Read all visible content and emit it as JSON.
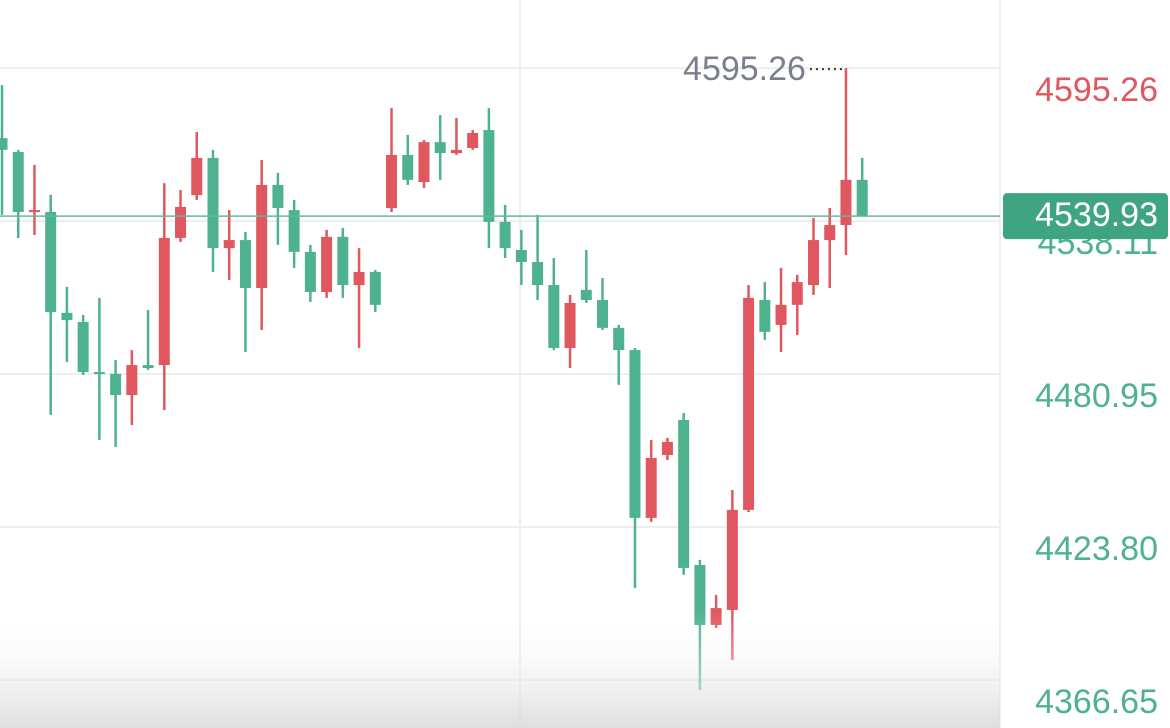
{
  "chart_data": {
    "type": "candlestick",
    "up_color": "#e0575f",
    "down_color": "#4fb28f",
    "grid": true,
    "ylim": [
      4348.7,
      4620.7
    ],
    "yticks": [
      4595.26,
      4538.11,
      4480.95,
      {
        "value": 4423.8,
        "label": "4423.80"
      },
      4366.65
    ],
    "open": [
      4569.1,
      4563.9,
      4541.5,
      4541.5,
      4503.8,
      4500.4,
      4481.7,
      4481.0,
      4473.1,
      4484.3,
      4484.3,
      4531.8,
      4547.8,
      4561.7,
      4528.0,
      4531.0,
      4513.1,
      4551.6,
      4542.2,
      4526.6,
      4511.6,
      4532.2,
      4514.2,
      4519.1,
      4543.0,
      4562.8,
      4552.7,
      4567.6,
      4563.5,
      4565.4,
      4572.1,
      4537.8,
      4527.3,
      4522.8,
      4514.2,
      4490.7,
      4512.4,
      4508.6,
      4498.2,
      4489.9,
      4427.2,
      4450.7,
      4463.8,
      4409.6,
      4387.2,
      4392.8,
      4430.2,
      4508.6,
      4499.3,
      4506.8,
      4514.2,
      4531.0,
      4536.6,
      4553.5
    ],
    "high": [
      4588.9,
      4564.7,
      4559.1,
      4547.9,
      4513.5,
      4503.0,
      4509.4,
      4486.2,
      4489.9,
      4504.9,
      4552.3,
      4549.7,
      4571.4,
      4564.7,
      4542.2,
      4534.0,
      4560.9,
      4556.1,
      4546.0,
      4529.2,
      4534.8,
      4535.5,
      4528.0,
      4519.8,
      4580.3,
      4570.3,
      4568.4,
      4577.7,
      4576.6,
      4572.1,
      4580.3,
      4544.1,
      4534.8,
      4540.4,
      4524.3,
      4510.5,
      4527.3,
      4516.8,
      4499.3,
      4490.7,
      4456.3,
      4457.1,
      4466.4,
      4411.5,
      4398.4,
      4437.6,
      4514.2,
      4515.3,
      4520.6,
      4518.0,
      4539.3,
      4543.0,
      4595.26,
      4561.7
    ],
    "low": [
      4540.4,
      4531.8,
      4532.9,
      4465.7,
      4485.5,
      4480.6,
      4456.3,
      4453.7,
      4461.9,
      4482.5,
      4467.5,
      4530.3,
      4546.0,
      4519.1,
      4516.1,
      4489.2,
      4497.4,
      4529.2,
      4520.6,
      4507.9,
      4509.4,
      4509.4,
      4490.7,
      4504.1,
      4541.5,
      4551.6,
      4550.5,
      4553.5,
      4562.8,
      4564.7,
      4528.0,
      4524.3,
      4514.2,
      4508.6,
      4489.9,
      4483.2,
      4507.5,
      4497.4,
      4476.9,
      4401.0,
      4425.7,
      4448.8,
      4405.9,
      4362.9,
      4386.1,
      4374.1,
      4429.4,
      4493.7,
      4489.2,
      4495.5,
      4510.5,
      4513.1,
      4525.4,
      4539.93
    ],
    "close": [
      4564.7,
      4541.5,
      4542.2,
      4504.1,
      4501.1,
      4481.7,
      4481.0,
      4473.1,
      4484.3,
      4483.2,
      4531.8,
      4543.4,
      4561.7,
      4528.0,
      4531.0,
      4513.1,
      4551.6,
      4543.0,
      4526.6,
      4511.6,
      4532.2,
      4514.2,
      4519.1,
      4506.8,
      4562.8,
      4553.5,
      4567.6,
      4563.5,
      4564.7,
      4571.0,
      4537.8,
      4528.0,
      4522.8,
      4514.2,
      4490.7,
      4507.5,
      4508.6,
      4498.2,
      4489.9,
      4427.2,
      4449.6,
      4455.6,
      4408.5,
      4387.2,
      4393.5,
      4430.2,
      4509.4,
      4496.7,
      4506.8,
      4515.3,
      4531.0,
      4536.6,
      4553.5,
      4539.93
    ]
  }
}
